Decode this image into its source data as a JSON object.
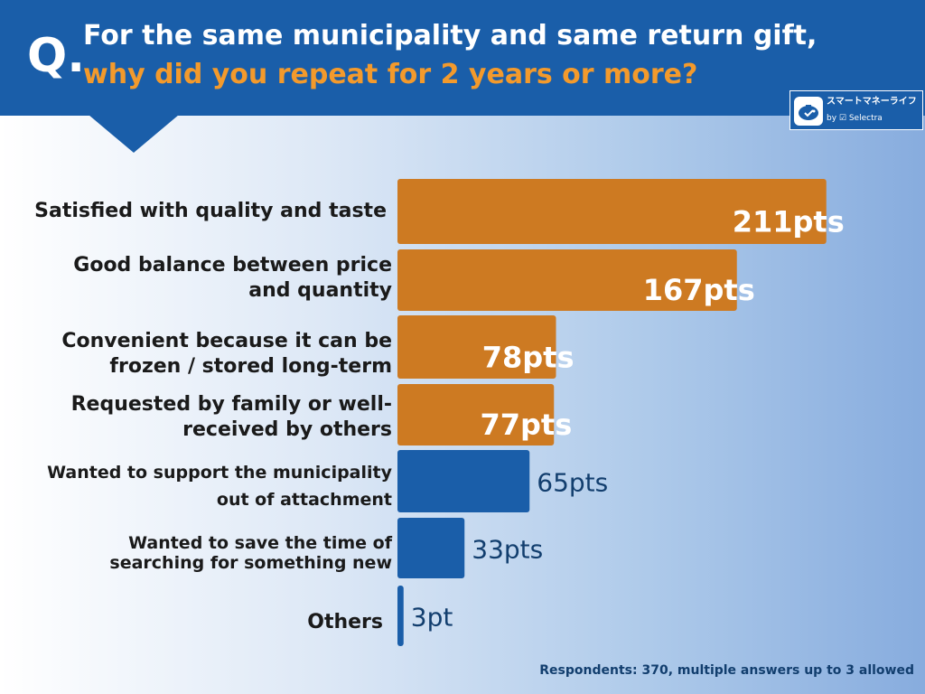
{
  "header": {
    "q_mark": "Q.",
    "title_line1": "For the same municipality and same return gift,",
    "title_line2": "why did you repeat for 2 years or more?"
  },
  "logo": {
    "name_jp": "スマートマネーライフ",
    "by_text": "by ☑ Selectra"
  },
  "colors": {
    "header_bg": "#1a5ea9",
    "highlight": "#f39a2c",
    "bar_top": "#cd7a22",
    "bar_other": "#1a5ea9"
  },
  "chart_data": {
    "type": "bar",
    "orientation": "horizontal",
    "categories": [
      "Satisfied with quality and taste",
      "Good balance between price\nand quantity",
      "Convenient because it can be\nfrozen / stored long-term",
      "Requested by family or well-\nreceived by others",
      "Wanted to support the municipality\nout of attachment",
      "Wanted to save the time of\nsearching for something new",
      "Others"
    ],
    "values": [
      211,
      167,
      78,
      77,
      65,
      33,
      3
    ],
    "value_labels": [
      "211pts",
      "167pts",
      "78pts",
      "77pts",
      "65pts",
      "33pts",
      "3pt"
    ],
    "highlighted": [
      true,
      true,
      true,
      true,
      false,
      false,
      false
    ],
    "xlim": [
      0,
      220
    ]
  },
  "footnote": "Respondents: 370, multiple answers up to 3 allowed"
}
